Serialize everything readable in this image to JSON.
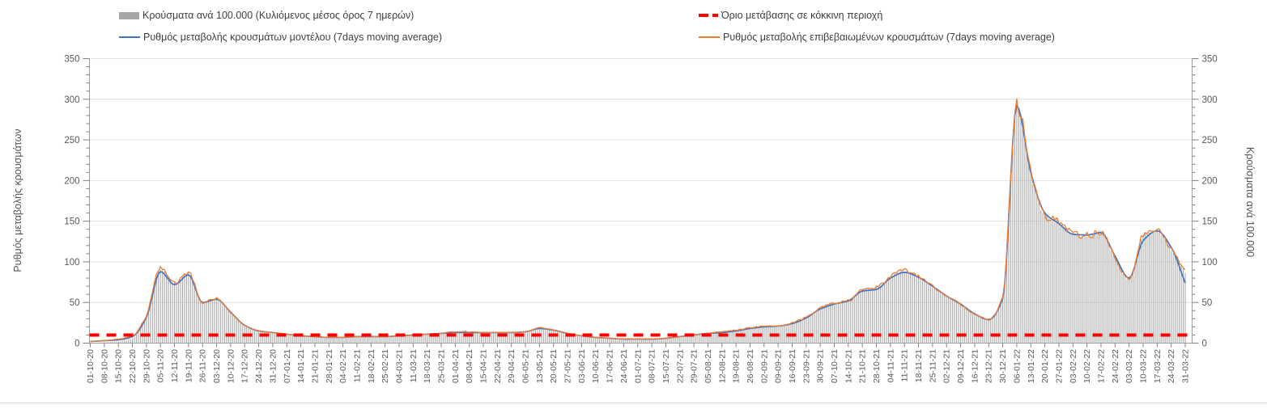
{
  "legend": {
    "cases_bars": {
      "label": "Κρούσματα ανά 100.000 (Κυλιόμενος μέσος όρος 7 ημερών)",
      "color": "#a6a6a6",
      "marker": "bar"
    },
    "model_line": {
      "label": "Ρυθμός μεταβολής κρουσμάτων μοντέλου (7days moving average)",
      "color": "#4472c4",
      "marker": "line"
    },
    "threshold_line": {
      "label": "Όριο μετάβασης σε κόκκινη περιοχή",
      "color": "#ff0000",
      "marker": "dashed"
    },
    "confirmed_line": {
      "label": "Ρυθμός μεταβολής επιβεβαιωμένων κρουσμάτων (7days moving average)",
      "color": "#ed7d31",
      "marker": "line"
    }
  },
  "axes": {
    "left_title": "Ρυθμός μεταβολής κρουσμάτων",
    "right_title": "Κρούσματα ανά 100.000",
    "y_min": 0,
    "y_max": 350,
    "y_major_step": 50,
    "y_minor_step": 10,
    "tick_color": "#595959",
    "grid_color": "#e2e2e2",
    "axis_color": "#9b9b9b"
  },
  "chart_data": {
    "type": "composite",
    "title": "",
    "grid": "horizontal-major",
    "ylim": [
      0,
      350
    ],
    "threshold_value": 10,
    "x_tick_labels": [
      "01-10-20",
      "08-10-20",
      "15-10-20",
      "22-10-20",
      "29-10-20",
      "05-11-20",
      "12-11-20",
      "19-11-20",
      "26-11-20",
      "03-12-20",
      "10-12-20",
      "17-12-20",
      "24-12-20",
      "31-12-20",
      "07-01-21",
      "14-01-21",
      "21-01-21",
      "28-01-21",
      "04-02-21",
      "11-02-21",
      "18-02-21",
      "25-02-21",
      "04-03-21",
      "11-03-21",
      "18-03-21",
      "25-03-21",
      "01-04-21",
      "08-04-21",
      "15-04-21",
      "22-04-21",
      "29-04-21",
      "06-05-21",
      "13-05-21",
      "20-05-21",
      "27-05-21",
      "03-06-21",
      "10-06-21",
      "17-06-21",
      "24-06-21",
      "01-07-21",
      "08-07-21",
      "15-07-21",
      "22-07-21",
      "29-07-21",
      "05-08-21",
      "12-08-21",
      "19-08-21",
      "26-08-21",
      "02-09-21",
      "09-09-21",
      "16-09-21",
      "23-09-21",
      "30-09-21",
      "07-10-21",
      "14-10-21",
      "21-10-21",
      "28-10-21",
      "04-11-21",
      "11-11-21",
      "18-11-21",
      "25-11-21",
      "02-12-21",
      "09-12-21",
      "16-12-21",
      "23-12-21",
      "30-12-21",
      "06-01-22",
      "13-01-22",
      "20-01-22",
      "27-01-22",
      "03-02-22",
      "10-02-22",
      "17-02-22",
      "24-02-22",
      "03-03-22",
      "10-03-22",
      "17-03-22",
      "24-03-22",
      "31-03-22"
    ],
    "series": [
      {
        "name": "Κρούσματα ανά 100.000 (Κυλιόμενος μέσος όρος 7 ημερών)",
        "type": "bar",
        "axis": "right",
        "color": "#adadad",
        "weekly_values": [
          0,
          1,
          2,
          6,
          34,
          92,
          74,
          86,
          50,
          55,
          38,
          22,
          15,
          13,
          11,
          9,
          8,
          7,
          7,
          8,
          8,
          8,
          9,
          10,
          11,
          12,
          14,
          14,
          13,
          13,
          13,
          14,
          19,
          16,
          12,
          9,
          7,
          6,
          5,
          5,
          5,
          6,
          8,
          10,
          12,
          14,
          16,
          19,
          21,
          21,
          25,
          32,
          43,
          49,
          52,
          65,
          68,
          81,
          89,
          82,
          70,
          58,
          48,
          36,
          29,
          57,
          295,
          208,
          158,
          148,
          135,
          132,
          137,
          105,
          79,
          132,
          137,
          116,
          88
        ]
      },
      {
        "name": "Ρυθμός μεταβολής κρουσμάτων μοντέλου (7days moving average)",
        "type": "line",
        "axis": "left",
        "color": "#4472c4",
        "weekly_values": [
          2,
          3,
          4,
          8,
          32,
          88,
          72,
          84,
          50,
          54,
          38,
          22,
          15,
          13,
          11,
          9,
          8,
          7,
          7,
          8,
          8,
          8,
          9,
          10,
          11,
          12,
          13,
          13,
          13,
          13,
          13,
          14,
          18,
          16,
          12,
          9,
          7,
          6,
          5,
          5,
          5,
          6,
          8,
          10,
          12,
          13,
          15,
          18,
          20,
          21,
          24,
          31,
          42,
          48,
          52,
          64,
          66,
          80,
          87,
          81,
          70,
          58,
          48,
          36,
          29,
          55,
          292,
          210,
          160,
          147,
          134,
          133,
          136,
          107,
          80,
          126,
          138,
          118,
          74
        ]
      },
      {
        "name": "Ρυθμός μεταβολής επιβεβαιωμένων κρουσμάτων (7days moving average)",
        "type": "line",
        "axis": "left",
        "color": "#ed7d31",
        "weekly_values": [
          2,
          3,
          5,
          9,
          34,
          92,
          74,
          86,
          50,
          55,
          38,
          22,
          15,
          13,
          11,
          9,
          8,
          7,
          7,
          8,
          8,
          8,
          9,
          10,
          11,
          12,
          14,
          14,
          13,
          13,
          13,
          14,
          19,
          16,
          12,
          9,
          7,
          6,
          5,
          5,
          5,
          6,
          8,
          10,
          12,
          14,
          16,
          19,
          21,
          21,
          25,
          32,
          43,
          49,
          52,
          65,
          68,
          81,
          89,
          82,
          70,
          58,
          48,
          36,
          29,
          57,
          295,
          208,
          158,
          148,
          135,
          132,
          137,
          105,
          79,
          132,
          137,
          116,
          88
        ]
      },
      {
        "name": "Όριο μετάβασης σε κόκκινη περιοχή",
        "type": "threshold",
        "axis": "left",
        "color": "#ff0000",
        "value": 10
      }
    ]
  }
}
